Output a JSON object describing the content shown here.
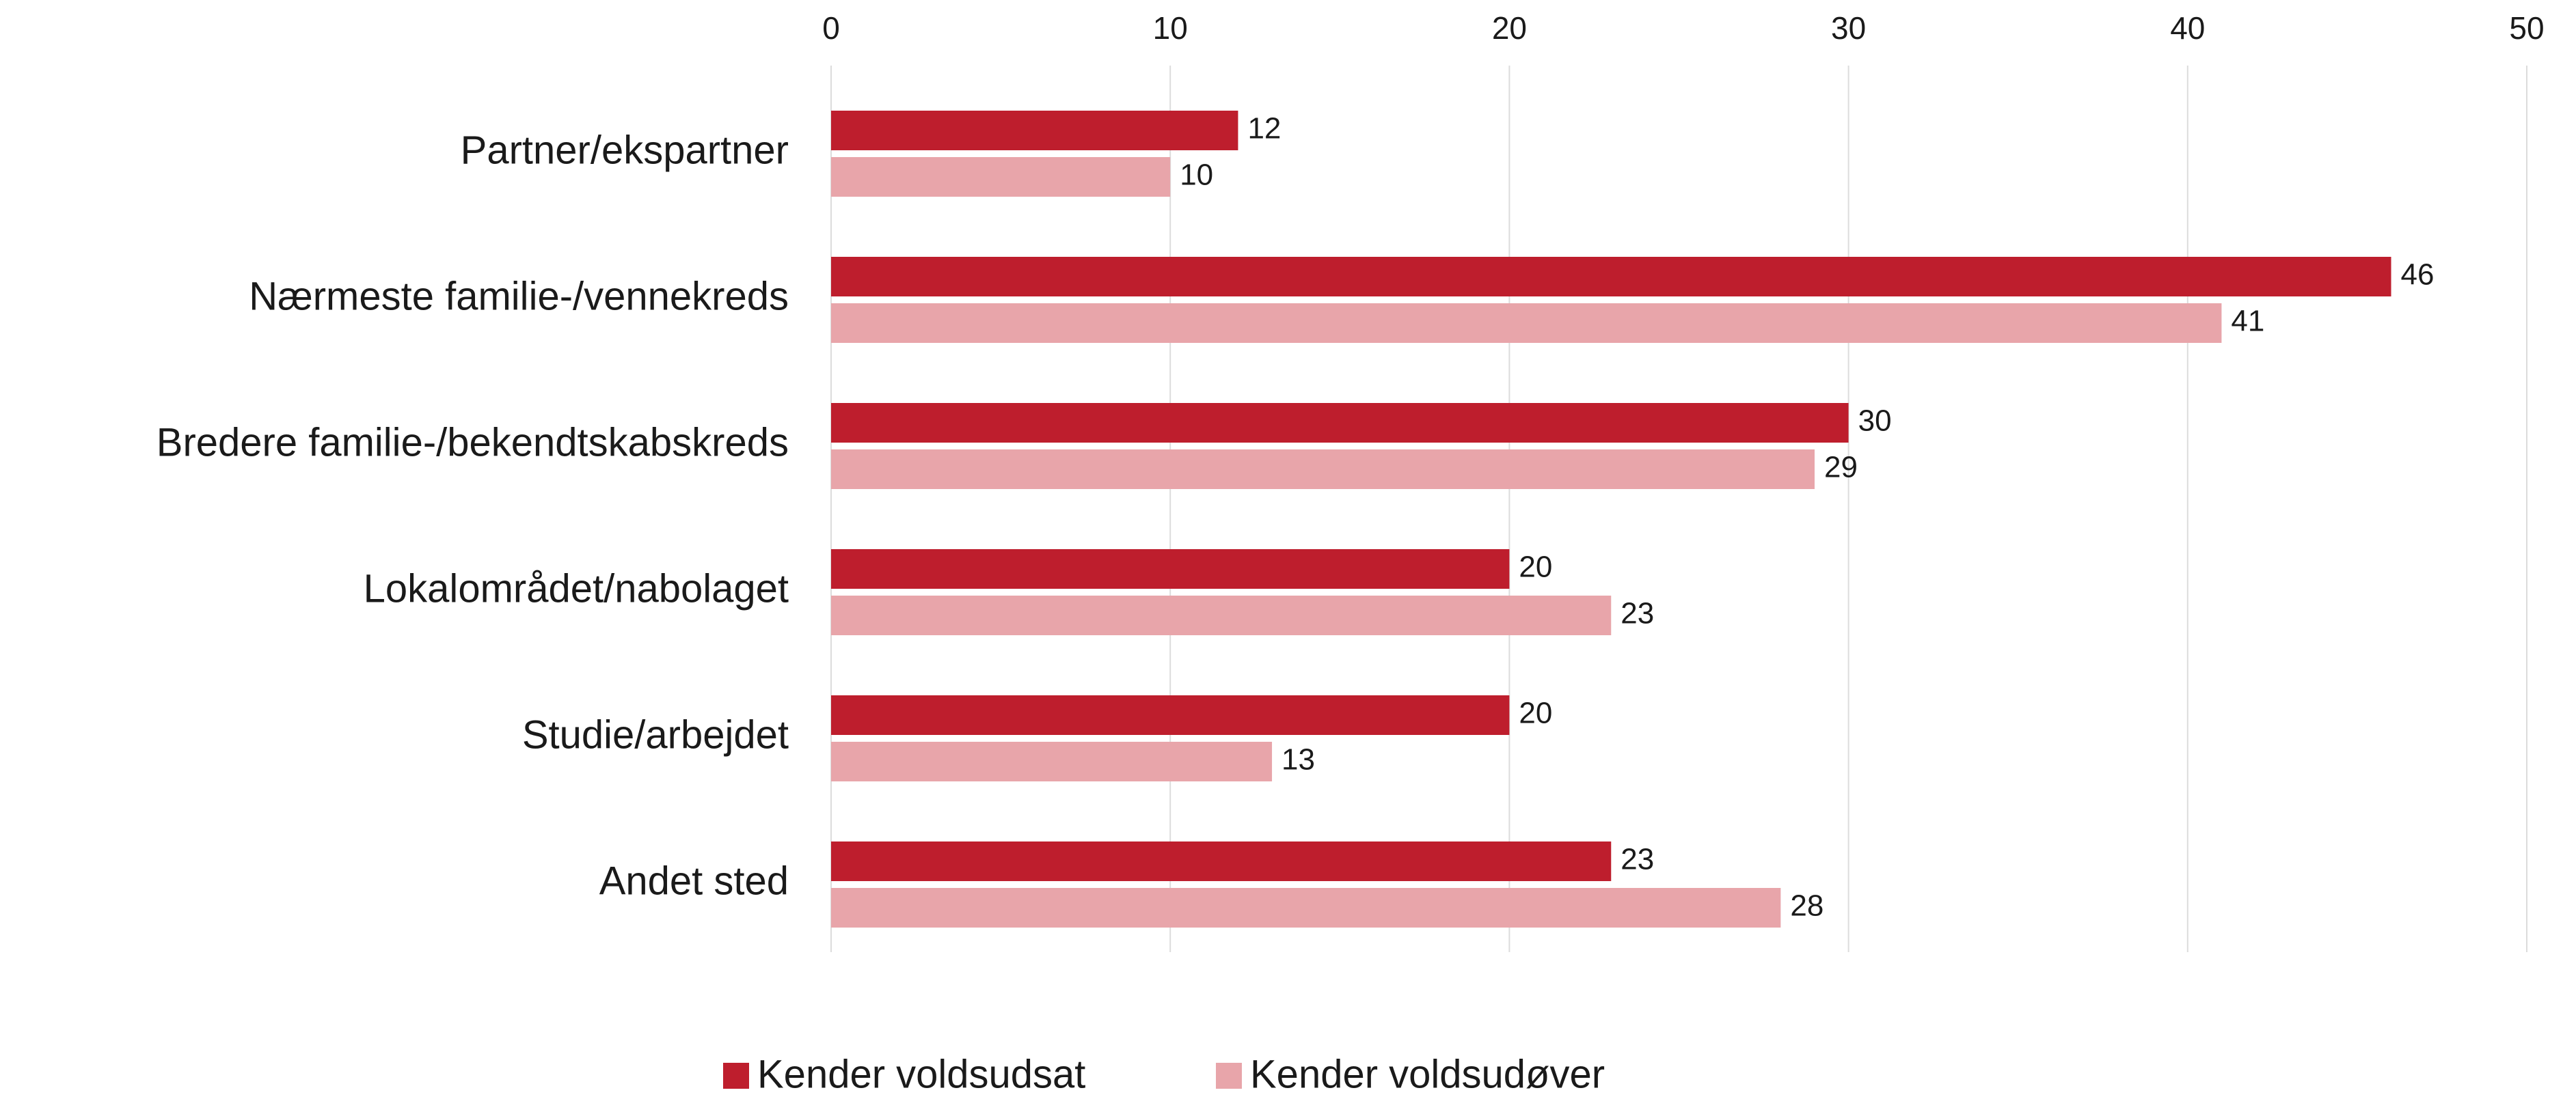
{
  "chart_data": {
    "type": "bar",
    "orientation": "horizontal",
    "categories": [
      "Partner/ekspartner",
      "Nærmeste familie-/vennekreds",
      "Bredere familie-/bekendtskabskreds",
      "Lokalområdet/nabolaget",
      "Studie/arbejdet",
      "Andet sted"
    ],
    "series": [
      {
        "name": "Kender voldsudsat",
        "color": "#be1e2d",
        "values": [
          12,
          46,
          30,
          20,
          20,
          23
        ]
      },
      {
        "name": "Kender voldsudøver",
        "color": "#e8a5aa",
        "values": [
          10,
          41,
          29,
          23,
          13,
          28
        ]
      }
    ],
    "xlim": [
      0,
      50
    ],
    "xticks": [
      0,
      10,
      20,
      30,
      40,
      50
    ],
    "grid": true,
    "legend": "bottom"
  }
}
